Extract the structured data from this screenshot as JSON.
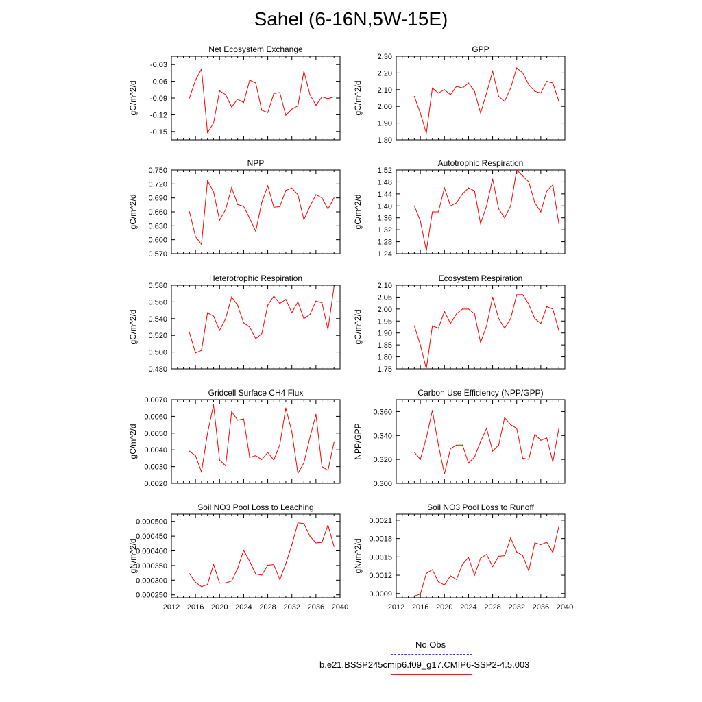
{
  "title": "Sahel (6-16N,5W-15E)",
  "line_color": "#ff0000",
  "obs_color": "#4040cc",
  "legend": {
    "obs_label": "No Obs",
    "model_label": "b.e21.BSSP245cmip6.f09_g17.CMIP6-SSP2-4.5.003"
  },
  "chart_data": [
    {
      "type": "line",
      "title": "Net Ecosystem Exchange",
      "ylabel": "gC/m^2/d",
      "xlim": [
        2012,
        2040
      ],
      "xticks": [
        "2012",
        "2016",
        "2020",
        "2024",
        "2028",
        "2032",
        "2036",
        "2040"
      ],
      "ylim": [
        -0.165,
        -0.015
      ],
      "yticks": [
        "-0.03",
        "-0.06",
        "-0.09",
        "-0.12",
        "-0.15"
      ],
      "x": [
        2015,
        2016,
        2017,
        2018,
        2019,
        2020,
        2021,
        2022,
        2023,
        2024,
        2025,
        2026,
        2027,
        2028,
        2029,
        2030,
        2031,
        2032,
        2033,
        2034,
        2035,
        2036,
        2037,
        2038,
        2039
      ],
      "values": [
        -0.09,
        -0.058,
        -0.038,
        -0.152,
        -0.135,
        -0.077,
        -0.084,
        -0.106,
        -0.092,
        -0.098,
        -0.058,
        -0.063,
        -0.112,
        -0.116,
        -0.082,
        -0.08,
        -0.121,
        -0.11,
        -0.104,
        -0.042,
        -0.084,
        -0.103,
        -0.088,
        -0.091,
        -0.088
      ]
    },
    {
      "type": "line",
      "title": "GPP",
      "ylabel": "gC/m^2/d",
      "xlim": [
        2012,
        2040
      ],
      "xticks": [
        "2012",
        "2016",
        "2020",
        "2024",
        "2028",
        "2032",
        "2036",
        "2040"
      ],
      "ylim": [
        1.8,
        2.3
      ],
      "yticks": [
        "2.30",
        "2.20",
        "2.10",
        "2.00",
        "1.90",
        "1.80"
      ],
      "x": [
        2015,
        2016,
        2017,
        2018,
        2019,
        2020,
        2021,
        2022,
        2023,
        2024,
        2025,
        2026,
        2027,
        2028,
        2029,
        2030,
        2031,
        2032,
        2033,
        2034,
        2035,
        2036,
        2037,
        2038,
        2039
      ],
      "values": [
        2.06,
        1.96,
        1.84,
        2.11,
        2.08,
        2.1,
        2.07,
        2.12,
        2.11,
        2.14,
        2.09,
        1.96,
        2.08,
        2.21,
        2.06,
        2.03,
        2.11,
        2.23,
        2.2,
        2.13,
        2.09,
        2.08,
        2.15,
        2.14,
        2.03
      ]
    },
    {
      "type": "line",
      "title": "NPP",
      "ylabel": "gC/m^2/d",
      "xlim": [
        2012,
        2040
      ],
      "xticks": [
        "2012",
        "2016",
        "2020",
        "2024",
        "2028",
        "2032",
        "2036",
        "2040"
      ],
      "ylim": [
        0.57,
        0.75
      ],
      "yticks": [
        "0.750",
        "0.720",
        "0.690",
        "0.660",
        "0.630",
        "0.600",
        "0.570"
      ],
      "x": [
        2015,
        2016,
        2017,
        2018,
        2019,
        2020,
        2021,
        2022,
        2023,
        2024,
        2025,
        2026,
        2027,
        2028,
        2029,
        2030,
        2031,
        2032,
        2033,
        2034,
        2035,
        2036,
        2037,
        2038,
        2039
      ],
      "values": [
        0.66,
        0.607,
        0.59,
        0.727,
        0.703,
        0.642,
        0.665,
        0.712,
        0.676,
        0.672,
        0.646,
        0.618,
        0.68,
        0.716,
        0.67,
        0.671,
        0.706,
        0.711,
        0.697,
        0.643,
        0.672,
        0.697,
        0.69,
        0.666,
        0.69
      ]
    },
    {
      "type": "line",
      "title": "Autotrophic Respiration",
      "ylabel": "gC/m^2/d",
      "xlim": [
        2012,
        2040
      ],
      "xticks": [
        "2012",
        "2016",
        "2020",
        "2024",
        "2028",
        "2032",
        "2036",
        "2040"
      ],
      "ylim": [
        1.24,
        1.52
      ],
      "yticks": [
        "1.52",
        "1.48",
        "1.44",
        "1.40",
        "1.36",
        "1.32",
        "1.28",
        "1.24"
      ],
      "x": [
        2015,
        2016,
        2017,
        2018,
        2019,
        2020,
        2021,
        2022,
        2023,
        2024,
        2025,
        2026,
        2027,
        2028,
        2029,
        2030,
        2031,
        2032,
        2033,
        2034,
        2035,
        2036,
        2037,
        2038,
        2039
      ],
      "values": [
        1.4,
        1.35,
        1.25,
        1.38,
        1.38,
        1.46,
        1.4,
        1.41,
        1.44,
        1.46,
        1.45,
        1.34,
        1.4,
        1.49,
        1.39,
        1.36,
        1.4,
        1.52,
        1.5,
        1.48,
        1.41,
        1.38,
        1.45,
        1.47,
        1.34
      ]
    },
    {
      "type": "line",
      "title": "Heterotrophic Respiration",
      "ylabel": "gC/m^2/d",
      "xlim": [
        2012,
        2040
      ],
      "xticks": [
        "2012",
        "2016",
        "2020",
        "2024",
        "2028",
        "2032",
        "2036",
        "2040"
      ],
      "ylim": [
        0.48,
        0.58
      ],
      "yticks": [
        "0.580",
        "0.560",
        "0.540",
        "0.520",
        "0.500",
        "0.480"
      ],
      "x": [
        2015,
        2016,
        2017,
        2018,
        2019,
        2020,
        2021,
        2022,
        2023,
        2024,
        2025,
        2026,
        2027,
        2028,
        2029,
        2030,
        2031,
        2032,
        2033,
        2034,
        2035,
        2036,
        2037,
        2038,
        2039
      ],
      "values": [
        0.523,
        0.499,
        0.502,
        0.547,
        0.543,
        0.526,
        0.54,
        0.566,
        0.556,
        0.535,
        0.53,
        0.516,
        0.522,
        0.556,
        0.567,
        0.558,
        0.563,
        0.547,
        0.56,
        0.54,
        0.545,
        0.561,
        0.559,
        0.527,
        0.578
      ]
    },
    {
      "type": "line",
      "title": "Ecosystem Respiration",
      "ylabel": "gC/m^2/d",
      "xlim": [
        2012,
        2040
      ],
      "xticks": [
        "2012",
        "2016",
        "2020",
        "2024",
        "2028",
        "2032",
        "2036",
        "2040"
      ],
      "ylim": [
        1.75,
        2.1
      ],
      "yticks": [
        "2.10",
        "2.05",
        "2.00",
        "1.95",
        "1.90",
        "1.85",
        "1.80",
        "1.75"
      ],
      "x": [
        2015,
        2016,
        2017,
        2018,
        2019,
        2020,
        2021,
        2022,
        2023,
        2024,
        2025,
        2026,
        2027,
        2028,
        2029,
        2030,
        2031,
        2032,
        2033,
        2034,
        2035,
        2036,
        2037,
        2038,
        2039
      ],
      "values": [
        1.93,
        1.85,
        1.75,
        1.93,
        1.92,
        1.99,
        1.94,
        1.98,
        2.0,
        2.0,
        1.98,
        1.86,
        1.93,
        2.05,
        1.96,
        1.92,
        1.96,
        2.06,
        2.06,
        2.02,
        1.96,
        1.94,
        2.01,
        2.0,
        1.91
      ]
    },
    {
      "type": "line",
      "title": "Gridcell Surface CH4 Flux",
      "ylabel": "gC/m^2/d",
      "xlim": [
        2012,
        2040
      ],
      "xticks": [
        "2012",
        "2016",
        "2020",
        "2024",
        "2028",
        "2032",
        "2036",
        "2040"
      ],
      "ylim": [
        0.002,
        0.007
      ],
      "yticks": [
        "0.0070",
        "0.0060",
        "0.0050",
        "0.0040",
        "0.0030",
        "0.0020"
      ],
      "x": [
        2015,
        2016,
        2017,
        2018,
        2019,
        2020,
        2021,
        2022,
        2023,
        2024,
        2025,
        2026,
        2027,
        2028,
        2029,
        2030,
        2031,
        2032,
        2033,
        2034,
        2035,
        2036,
        2037,
        2038,
        2039
      ],
      "values": [
        0.00392,
        0.00365,
        0.00268,
        0.005,
        0.00669,
        0.00339,
        0.00305,
        0.00628,
        0.00578,
        0.00585,
        0.00355,
        0.00365,
        0.00342,
        0.00385,
        0.00339,
        0.0043,
        0.0065,
        0.00508,
        0.0026,
        0.00322,
        0.00475,
        0.00612,
        0.003,
        0.00277,
        0.00445
      ]
    },
    {
      "type": "line",
      "title": "Carbon Use Efficiency (NPP/GPP)",
      "ylabel": "NPP/GPP",
      "xlim": [
        2012,
        2040
      ],
      "xticks": [
        "2012",
        "2016",
        "2020",
        "2024",
        "2028",
        "2032",
        "2036",
        "2040"
      ],
      "ylim": [
        0.3,
        0.37
      ],
      "yticks": [
        "0.360",
        "0.340",
        "0.320",
        "0.300"
      ],
      "x": [
        2015,
        2016,
        2017,
        2018,
        2019,
        2020,
        2021,
        2022,
        2023,
        2024,
        2025,
        2026,
        2027,
        2028,
        2029,
        2030,
        2031,
        2032,
        2033,
        2034,
        2035,
        2036,
        2037,
        2038,
        2039
      ],
      "values": [
        0.326,
        0.32,
        0.338,
        0.361,
        0.332,
        0.308,
        0.329,
        0.332,
        0.332,
        0.317,
        0.322,
        0.335,
        0.346,
        0.327,
        0.332,
        0.355,
        0.349,
        0.346,
        0.321,
        0.32,
        0.341,
        0.336,
        0.338,
        0.318,
        0.346
      ]
    },
    {
      "type": "line",
      "title": "Soil NO3 Pool Loss to Leaching",
      "ylabel": "gN/m^2/d",
      "xlim": [
        2012,
        2040
      ],
      "xticks": [
        "2012",
        "2016",
        "2020",
        "2024",
        "2028",
        "2032",
        "2036",
        "2040"
      ],
      "ylim": [
        0.00024,
        0.000525
      ],
      "yticks": [
        "0.000500",
        "0.000450",
        "0.000400",
        "0.000350",
        "0.000300",
        "0.000250"
      ],
      "x": [
        2015,
        2016,
        2017,
        2018,
        2019,
        2020,
        2021,
        2022,
        2023,
        2024,
        2025,
        2026,
        2027,
        2028,
        2029,
        2030,
        2031,
        2032,
        2033,
        2034,
        2035,
        2036,
        2037,
        2038,
        2039
      ],
      "values": [
        0.000322,
        0.000293,
        0.000278,
        0.000285,
        0.000354,
        0.00029,
        0.000291,
        0.000297,
        0.00034,
        0.000402,
        0.000364,
        0.000321,
        0.000317,
        0.000351,
        0.000353,
        0.000302,
        0.000356,
        0.00042,
        0.000495,
        0.000493,
        0.00045,
        0.000427,
        0.000429,
        0.000488,
        0.000415
      ]
    },
    {
      "type": "line",
      "title": "Soil NO3 Pool Loss to Runoff",
      "ylabel": "gN/m^2/d",
      "xlim": [
        2012,
        2040
      ],
      "xticks": [
        "2012",
        "2016",
        "2020",
        "2024",
        "2028",
        "2032",
        "2036",
        "2040"
      ],
      "ylim": [
        0.00083,
        0.0022
      ],
      "yticks": [
        "0.0021",
        "0.0018",
        "0.0015",
        "0.0012",
        "0.0009"
      ],
      "x": [
        2015,
        2016,
        2017,
        2018,
        2019,
        2020,
        2021,
        2022,
        2023,
        2024,
        2025,
        2026,
        2027,
        2028,
        2029,
        2030,
        2031,
        2032,
        2033,
        2034,
        2035,
        2036,
        2037,
        2038,
        2039
      ],
      "values": [
        0.00086,
        0.00089,
        0.00123,
        0.00129,
        0.00109,
        0.00104,
        0.00119,
        0.00113,
        0.00138,
        0.00149,
        0.0012,
        0.00148,
        0.00154,
        0.00134,
        0.00151,
        0.00152,
        0.00181,
        0.00158,
        0.00152,
        0.00127,
        0.00173,
        0.0017,
        0.00174,
        0.00157,
        0.002
      ]
    }
  ]
}
